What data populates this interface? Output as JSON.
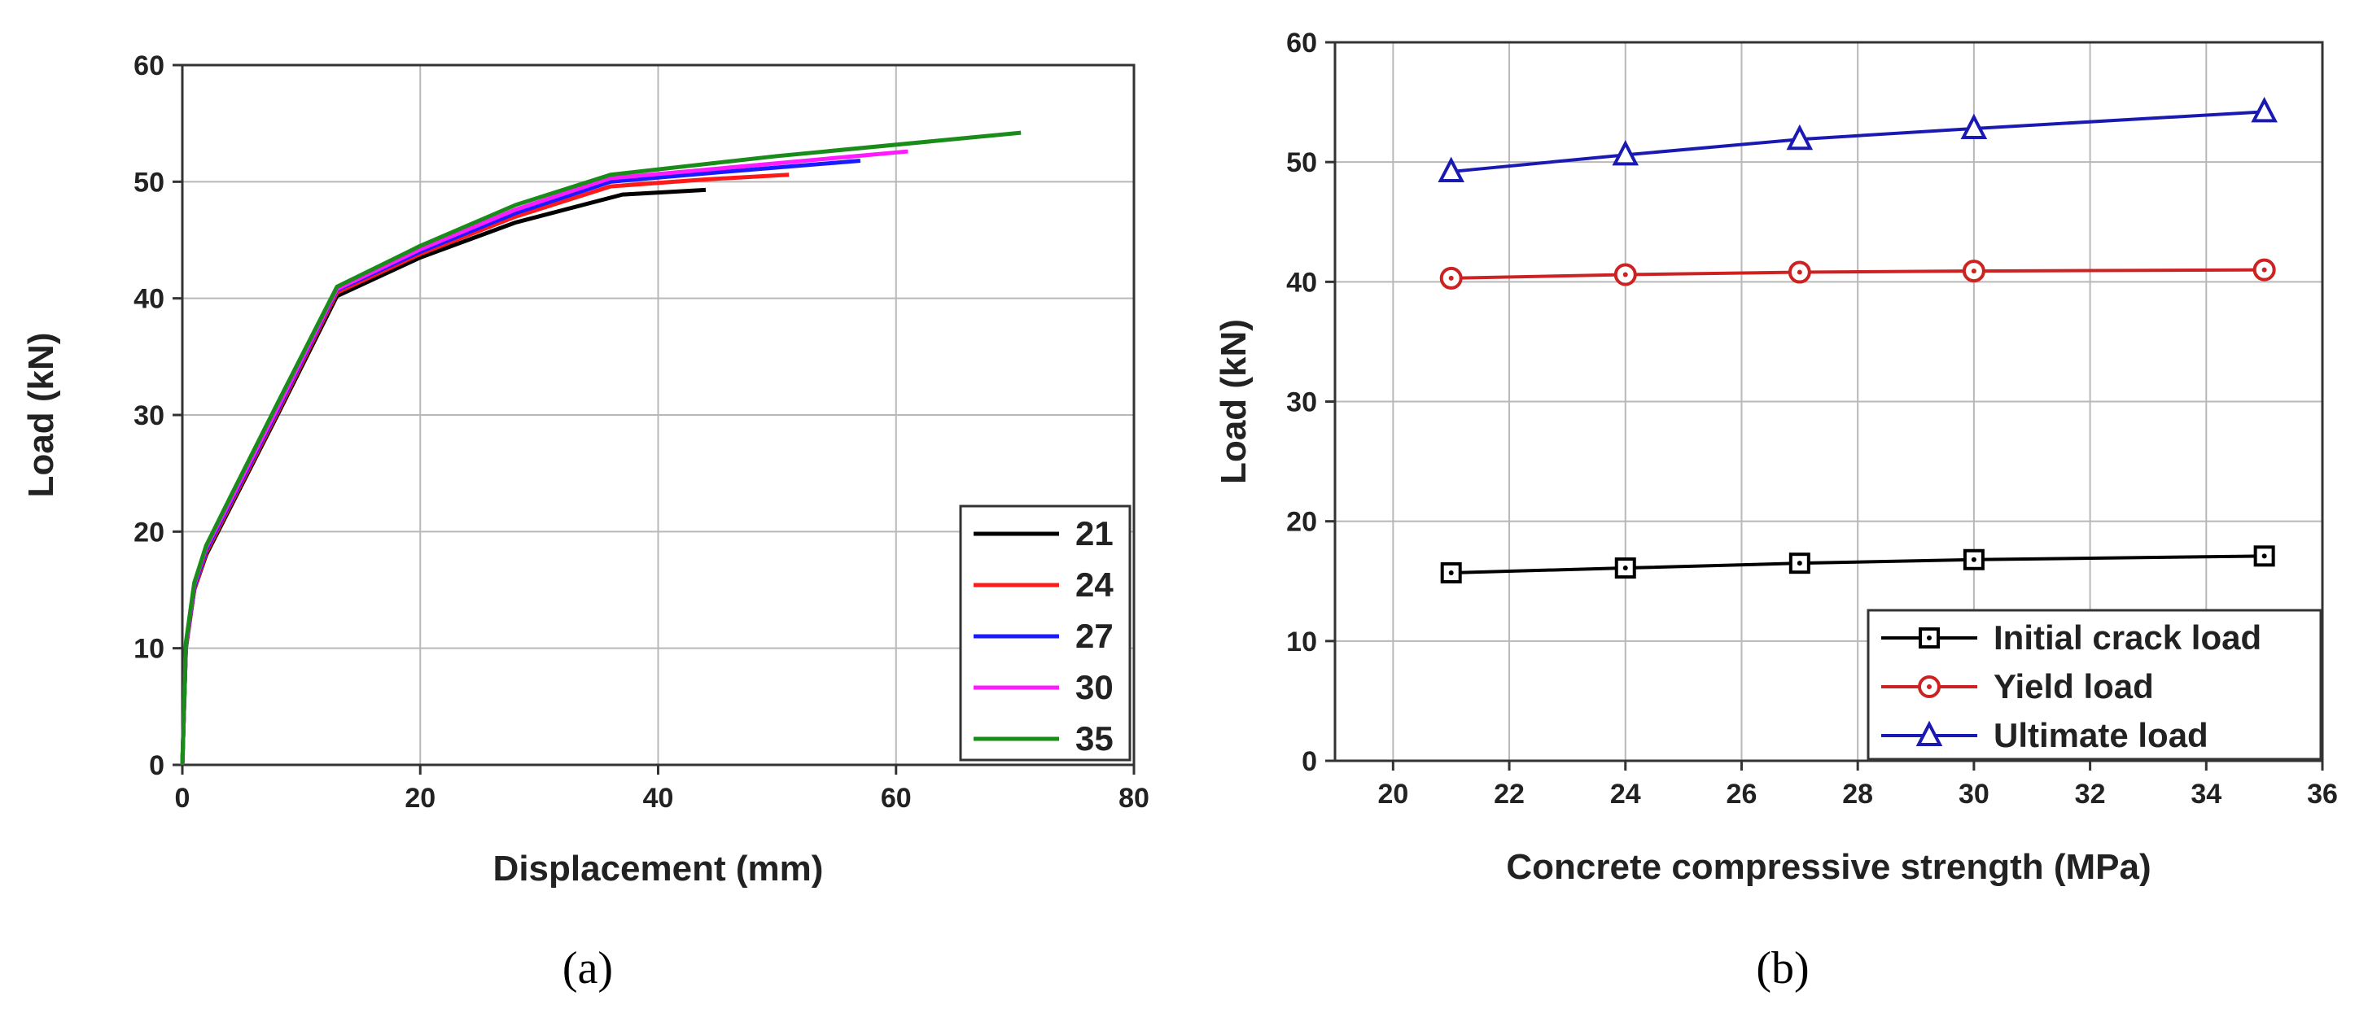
{
  "chart_data": [
    {
      "type": "line",
      "panel_label": "(a)",
      "title": "",
      "xlabel": "Displacement (mm)",
      "ylabel": "Load (kN)",
      "xlim": [
        0,
        80
      ],
      "ylim": [
        0,
        60
      ],
      "xticks": [
        0,
        20,
        40,
        60,
        80
      ],
      "yticks": [
        0,
        10,
        20,
        30,
        40,
        50,
        60
      ],
      "grid": true,
      "legend_position": "bottom-right",
      "series": [
        {
          "name": "21",
          "color": "#000000",
          "x": [
            0,
            0.3,
            1,
            2,
            4,
            8,
            13,
            20,
            28,
            37,
            44
          ],
          "y": [
            0,
            10,
            15,
            18,
            22,
            30,
            40.2,
            43.5,
            46.5,
            48.9,
            49.3
          ]
        },
        {
          "name": "24",
          "color": "#ff1a1a",
          "x": [
            0,
            0.3,
            1,
            2,
            4,
            8,
            13,
            20,
            28,
            36,
            44,
            51
          ],
          "y": [
            0,
            10,
            15,
            18.2,
            22.2,
            30.2,
            40.5,
            43.8,
            47,
            49.6,
            50.2,
            50.6
          ]
        },
        {
          "name": "27",
          "color": "#1a1aff",
          "x": [
            0,
            0.3,
            1,
            2,
            4,
            8,
            13,
            20,
            28,
            36,
            45,
            57
          ],
          "y": [
            0,
            10.2,
            15.2,
            18.4,
            22.4,
            30.4,
            40.7,
            44,
            47.3,
            50,
            50.8,
            51.8
          ]
        },
        {
          "name": "30",
          "color": "#ff1aff",
          "x": [
            0,
            0.3,
            1,
            2,
            4,
            8,
            13,
            20,
            28,
            36,
            48,
            61
          ],
          "y": [
            0,
            10.3,
            15.4,
            18.6,
            22.6,
            30.6,
            40.8,
            44.2,
            47.6,
            50.3,
            51.4,
            52.6
          ]
        },
        {
          "name": "35",
          "color": "#1a8c1a",
          "x": [
            0,
            0.3,
            1,
            2,
            4,
            8,
            13,
            20,
            28,
            36,
            50,
            70.5
          ],
          "y": [
            0,
            10.5,
            15.6,
            18.8,
            22.9,
            31,
            41,
            44.5,
            48,
            50.6,
            52.2,
            54.2
          ]
        }
      ]
    },
    {
      "type": "line",
      "panel_label": "(b)",
      "title": "",
      "xlabel": "Concrete compressive strength (MPa)",
      "ylabel": "Load (kN)",
      "xlim": [
        19,
        36
      ],
      "ylim": [
        0,
        60
      ],
      "xticks": [
        20,
        22,
        24,
        26,
        28,
        30,
        32,
        34,
        36
      ],
      "yticks": [
        0,
        10,
        20,
        30,
        40,
        50,
        60
      ],
      "grid": true,
      "legend_position": "bottom-right",
      "series": [
        {
          "name": "Initial crack load",
          "color": "#000000",
          "marker": "square",
          "x": [
            21,
            24,
            27,
            30,
            35
          ],
          "y": [
            15.7,
            16.1,
            16.5,
            16.8,
            17.1
          ]
        },
        {
          "name": "Yield load",
          "color": "#cc2222",
          "marker": "circle",
          "x": [
            21,
            24,
            27,
            30,
            35
          ],
          "y": [
            40.3,
            40.6,
            40.8,
            40.9,
            41.0
          ]
        },
        {
          "name": "Ultimate load",
          "color": "#1a1ab3",
          "marker": "triangle",
          "x": [
            21,
            24,
            27,
            30,
            35
          ],
          "y": [
            49.2,
            50.6,
            51.9,
            52.8,
            54.2
          ]
        }
      ]
    }
  ]
}
